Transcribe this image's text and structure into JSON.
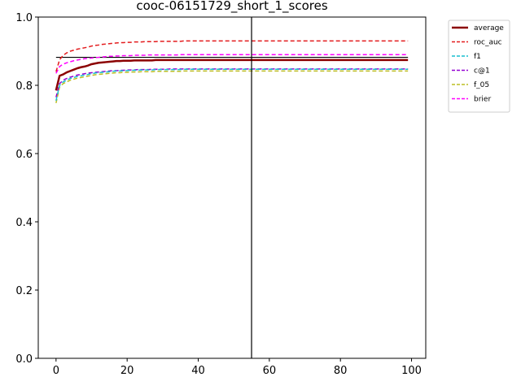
{
  "chart_data": {
    "type": "line",
    "title": "cooc-06151729_short_1_scores",
    "xlabel": "",
    "ylabel": "",
    "xlim": [
      -5,
      104
    ],
    "ylim": [
      0.0,
      1.0
    ],
    "xticks": [
      0,
      20,
      40,
      60,
      80,
      100
    ],
    "yticks": [
      0.0,
      0.2,
      0.4,
      0.6,
      0.8,
      1.0
    ],
    "xtick_labels": [
      "0",
      "20",
      "40",
      "60",
      "80",
      "100"
    ],
    "ytick_labels": [
      "0.0",
      "0.2",
      "0.4",
      "0.6",
      "0.8",
      "1.0"
    ],
    "grid": false,
    "legend_position": "outside-top-right",
    "vline_x": 55,
    "hline": {
      "y": 0.882,
      "xmin": 0,
      "xmax": 99,
      "color": "#000000"
    },
    "series": [
      {
        "name": "average",
        "color": "#8b0000",
        "dash": "solid",
        "width": 2.5,
        "values": [
          0.785,
          0.828,
          0.832,
          0.838,
          0.842,
          0.846,
          0.85,
          0.853,
          0.855,
          0.858,
          0.862,
          0.864,
          0.866,
          0.867,
          0.868,
          0.869,
          0.87,
          0.871,
          0.871,
          0.872,
          0.872,
          0.872,
          0.873,
          0.873,
          0.873,
          0.873,
          0.873,
          0.873,
          0.874,
          0.874,
          0.874,
          0.874,
          0.874,
          0.874,
          0.874,
          0.874,
          0.874,
          0.874,
          0.874,
          0.874,
          0.874,
          0.874,
          0.874,
          0.874,
          0.874,
          0.874,
          0.874,
          0.874,
          0.874,
          0.874,
          0.874,
          0.874,
          0.874,
          0.874,
          0.874,
          0.874,
          0.874,
          0.874,
          0.874,
          0.874,
          0.874,
          0.874,
          0.874,
          0.874,
          0.874,
          0.874,
          0.874,
          0.874,
          0.874,
          0.874,
          0.874,
          0.874,
          0.874,
          0.874,
          0.874,
          0.874,
          0.874,
          0.874,
          0.874,
          0.874,
          0.874,
          0.874,
          0.874,
          0.874,
          0.874,
          0.874,
          0.874,
          0.874,
          0.874,
          0.874,
          0.874,
          0.874,
          0.874,
          0.874,
          0.874,
          0.874,
          0.874,
          0.874,
          0.874,
          0.874
        ]
      },
      {
        "name": "roc_auc",
        "color": "#e31a1c",
        "dash": "5,3",
        "width": 1.5,
        "values": [
          0.84,
          0.875,
          0.888,
          0.895,
          0.9,
          0.903,
          0.906,
          0.908,
          0.91,
          0.912,
          0.915,
          0.917,
          0.918,
          0.92,
          0.921,
          0.922,
          0.923,
          0.924,
          0.925,
          0.925,
          0.926,
          0.926,
          0.927,
          0.927,
          0.927,
          0.928,
          0.928,
          0.928,
          0.928,
          0.929,
          0.929,
          0.929,
          0.929,
          0.929,
          0.929,
          0.929,
          0.93,
          0.93,
          0.93,
          0.93,
          0.93,
          0.93,
          0.93,
          0.93,
          0.93,
          0.93,
          0.93,
          0.93,
          0.93,
          0.93,
          0.93,
          0.93,
          0.93,
          0.93,
          0.93,
          0.93,
          0.93,
          0.93,
          0.93,
          0.93,
          0.93,
          0.93,
          0.93,
          0.93,
          0.93,
          0.93,
          0.93,
          0.93,
          0.93,
          0.93,
          0.93,
          0.93,
          0.93,
          0.93,
          0.93,
          0.93,
          0.93,
          0.93,
          0.93,
          0.93,
          0.93,
          0.93,
          0.93,
          0.93,
          0.93,
          0.93,
          0.93,
          0.93,
          0.93,
          0.93,
          0.93,
          0.93,
          0.93,
          0.93,
          0.93,
          0.93,
          0.93,
          0.93,
          0.93,
          0.93
        ]
      },
      {
        "name": "f1",
        "color": "#17becf",
        "dash": "5,3",
        "width": 1.5,
        "values": [
          0.755,
          0.8,
          0.81,
          0.815,
          0.82,
          0.823,
          0.826,
          0.828,
          0.83,
          0.832,
          0.834,
          0.836,
          0.837,
          0.838,
          0.839,
          0.84,
          0.841,
          0.842,
          0.842,
          0.843,
          0.843,
          0.844,
          0.844,
          0.844,
          0.845,
          0.845,
          0.845,
          0.845,
          0.846,
          0.846,
          0.846,
          0.846,
          0.846,
          0.846,
          0.846,
          0.846,
          0.847,
          0.847,
          0.847,
          0.847,
          0.847,
          0.847,
          0.847,
          0.847,
          0.847,
          0.847,
          0.847,
          0.847,
          0.847,
          0.847,
          0.847,
          0.847,
          0.847,
          0.847,
          0.847,
          0.847,
          0.847,
          0.847,
          0.847,
          0.847,
          0.847,
          0.847,
          0.847,
          0.847,
          0.847,
          0.847,
          0.847,
          0.847,
          0.847,
          0.847,
          0.847,
          0.847,
          0.847,
          0.847,
          0.847,
          0.847,
          0.847,
          0.847,
          0.847,
          0.847,
          0.847,
          0.847,
          0.847,
          0.847,
          0.847,
          0.847,
          0.847,
          0.847,
          0.847,
          0.847,
          0.847,
          0.847,
          0.847,
          0.847,
          0.847,
          0.847,
          0.847,
          0.847,
          0.847,
          0.847
        ]
      },
      {
        "name": "c@1",
        "color": "#9400d3",
        "dash": "5,3",
        "width": 1.5,
        "values": [
          0.765,
          0.805,
          0.815,
          0.82,
          0.824,
          0.827,
          0.83,
          0.832,
          0.834,
          0.836,
          0.837,
          0.838,
          0.839,
          0.84,
          0.841,
          0.842,
          0.843,
          0.843,
          0.844,
          0.844,
          0.845,
          0.845,
          0.845,
          0.846,
          0.846,
          0.846,
          0.846,
          0.847,
          0.847,
          0.847,
          0.847,
          0.847,
          0.848,
          0.848,
          0.848,
          0.848,
          0.848,
          0.848,
          0.848,
          0.848,
          0.848,
          0.848,
          0.848,
          0.848,
          0.848,
          0.848,
          0.848,
          0.848,
          0.848,
          0.848,
          0.848,
          0.848,
          0.848,
          0.848,
          0.848,
          0.848,
          0.848,
          0.848,
          0.848,
          0.848,
          0.848,
          0.848,
          0.848,
          0.848,
          0.848,
          0.848,
          0.848,
          0.848,
          0.848,
          0.848,
          0.848,
          0.848,
          0.848,
          0.848,
          0.848,
          0.848,
          0.848,
          0.848,
          0.848,
          0.848,
          0.848,
          0.848,
          0.848,
          0.848,
          0.848,
          0.848,
          0.848,
          0.848,
          0.848,
          0.848,
          0.848,
          0.848,
          0.848,
          0.848,
          0.848,
          0.848,
          0.848,
          0.848,
          0.848,
          0.848
        ]
      },
      {
        "name": "f_05",
        "color": "#bcbd22",
        "dash": "5,3",
        "width": 1.5,
        "values": [
          0.748,
          0.795,
          0.805,
          0.81,
          0.815,
          0.818,
          0.821,
          0.823,
          0.825,
          0.827,
          0.829,
          0.831,
          0.832,
          0.833,
          0.834,
          0.835,
          0.836,
          0.837,
          0.837,
          0.838,
          0.838,
          0.839,
          0.839,
          0.839,
          0.84,
          0.84,
          0.84,
          0.84,
          0.841,
          0.841,
          0.841,
          0.841,
          0.841,
          0.841,
          0.841,
          0.841,
          0.842,
          0.842,
          0.842,
          0.842,
          0.842,
          0.842,
          0.842,
          0.842,
          0.842,
          0.842,
          0.842,
          0.842,
          0.842,
          0.842,
          0.842,
          0.842,
          0.842,
          0.842,
          0.842,
          0.842,
          0.842,
          0.842,
          0.842,
          0.842,
          0.842,
          0.842,
          0.842,
          0.842,
          0.842,
          0.842,
          0.842,
          0.842,
          0.842,
          0.842,
          0.842,
          0.842,
          0.842,
          0.842,
          0.842,
          0.842,
          0.842,
          0.842,
          0.842,
          0.842,
          0.842,
          0.842,
          0.842,
          0.842,
          0.842,
          0.842,
          0.842,
          0.842,
          0.842,
          0.842,
          0.842,
          0.842,
          0.842,
          0.842,
          0.842,
          0.842,
          0.842,
          0.842,
          0.842,
          0.842
        ]
      },
      {
        "name": "brier",
        "color": "#ff00ff",
        "dash": "5,3",
        "width": 1.5,
        "values": [
          0.835,
          0.855,
          0.862,
          0.866,
          0.869,
          0.872,
          0.874,
          0.876,
          0.878,
          0.879,
          0.88,
          0.881,
          0.882,
          0.883,
          0.884,
          0.885,
          0.885,
          0.886,
          0.886,
          0.887,
          0.887,
          0.887,
          0.888,
          0.888,
          0.888,
          0.888,
          0.889,
          0.889,
          0.889,
          0.889,
          0.889,
          0.889,
          0.889,
          0.889,
          0.889,
          0.89,
          0.89,
          0.89,
          0.89,
          0.89,
          0.89,
          0.89,
          0.89,
          0.89,
          0.89,
          0.89,
          0.89,
          0.89,
          0.89,
          0.89,
          0.89,
          0.89,
          0.89,
          0.89,
          0.89,
          0.89,
          0.89,
          0.89,
          0.89,
          0.89,
          0.89,
          0.89,
          0.89,
          0.89,
          0.89,
          0.89,
          0.89,
          0.89,
          0.89,
          0.89,
          0.89,
          0.89,
          0.89,
          0.89,
          0.89,
          0.89,
          0.89,
          0.89,
          0.89,
          0.89,
          0.89,
          0.89,
          0.89,
          0.89,
          0.89,
          0.89,
          0.89,
          0.89,
          0.89,
          0.89,
          0.89,
          0.89,
          0.89,
          0.89,
          0.89,
          0.89,
          0.89,
          0.89,
          0.89,
          0.89
        ]
      }
    ]
  }
}
